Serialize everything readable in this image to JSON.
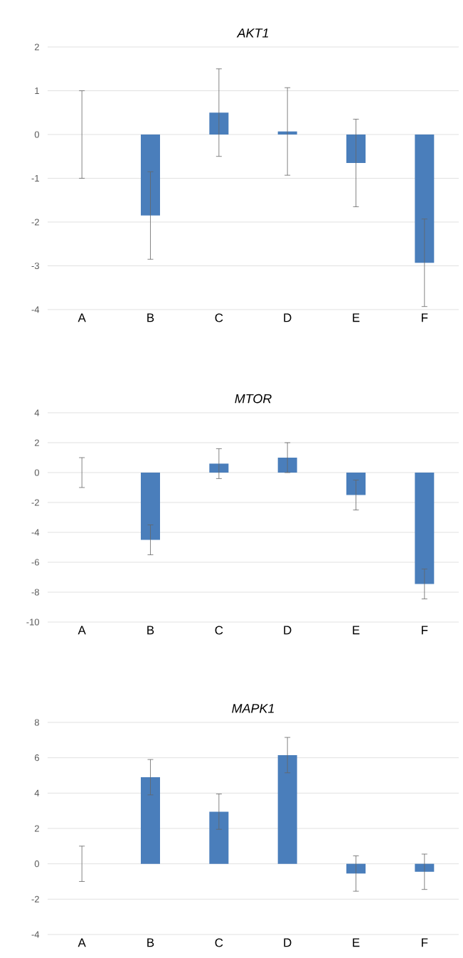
{
  "chart_data": [
    {
      "type": "bar",
      "title": "AKT1",
      "categories": [
        "A",
        "B",
        "C",
        "D",
        "E",
        "F"
      ],
      "values": [
        0,
        -1.85,
        0.5,
        0.07,
        -0.65,
        -2.93
      ],
      "errors": [
        1,
        1,
        1,
        1,
        1,
        1
      ],
      "color": "#4a7ebb",
      "ylim": [
        -4,
        2
      ],
      "yticks": [
        -4,
        -3,
        -2,
        -1,
        0,
        1,
        2
      ],
      "grid": "y"
    },
    {
      "type": "bar",
      "title": "MTOR",
      "categories": [
        "A",
        "B",
        "C",
        "D",
        "E",
        "F"
      ],
      "values": [
        0,
        -4.5,
        0.6,
        1.0,
        -1.5,
        -7.45
      ],
      "errors": [
        1,
        1,
        1,
        1,
        1,
        1
      ],
      "color": "#4a7ebb",
      "ylim": [
        -10,
        4
      ],
      "yticks": [
        -10,
        -8,
        -6,
        -4,
        -2,
        0,
        2,
        4
      ],
      "grid": "y"
    },
    {
      "type": "bar",
      "title": "MAPK1",
      "categories": [
        "A",
        "B",
        "C",
        "D",
        "E",
        "F"
      ],
      "values": [
        0,
        4.9,
        2.95,
        6.15,
        -0.55,
        -0.45
      ],
      "errors": [
        1,
        1,
        1,
        1,
        1,
        1
      ],
      "color": "#4a7ebb",
      "ylim": [
        -4,
        8
      ],
      "yticks": [
        -4,
        -2,
        0,
        2,
        4,
        6,
        8
      ],
      "grid": "y"
    }
  ]
}
